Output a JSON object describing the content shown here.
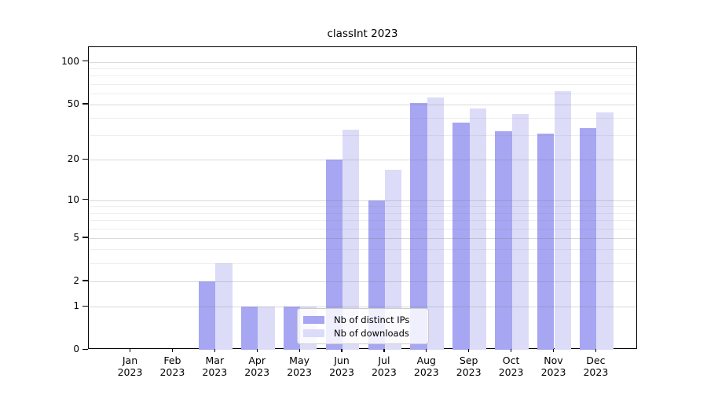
{
  "title": "classInt 2023",
  "chart_data": {
    "type": "bar",
    "yscale": "log10(1+x)",
    "grid": true,
    "legend_position": "lower center",
    "ylim": [
      0,
      126
    ],
    "categories": [
      {
        "month": "Jan",
        "year": "2023"
      },
      {
        "month": "Feb",
        "year": "2023"
      },
      {
        "month": "Mar",
        "year": "2023"
      },
      {
        "month": "Apr",
        "year": "2023"
      },
      {
        "month": "May",
        "year": "2023"
      },
      {
        "month": "Jun",
        "year": "2023"
      },
      {
        "month": "Jul",
        "year": "2023"
      },
      {
        "month": "Aug",
        "year": "2023"
      },
      {
        "month": "Sep",
        "year": "2023"
      },
      {
        "month": "Oct",
        "year": "2023"
      },
      {
        "month": "Nov",
        "year": "2023"
      },
      {
        "month": "Dec",
        "year": "2023"
      }
    ],
    "series": [
      {
        "name": "Nb of distinct IPs",
        "color": "#a6a6f2",
        "values": [
          0,
          0,
          2,
          1,
          1,
          20,
          10,
          51,
          37,
          32,
          31,
          34
        ]
      },
      {
        "name": "Nb of downloads",
        "color": "#dcdcf8",
        "values": [
          0,
          0,
          3,
          1,
          1,
          33,
          17,
          56,
          47,
          43,
          62,
          44
        ]
      }
    ],
    "ytick_values": [
      0,
      1,
      2,
      5,
      10,
      20,
      50,
      100
    ],
    "ytick_labels": [
      "0",
      "1",
      "2",
      "5",
      "10",
      "20",
      "50",
      "100"
    ],
    "minor_grid_values": [
      3,
      4,
      6,
      7,
      8,
      9,
      30,
      40,
      60,
      70,
      80,
      90
    ]
  },
  "colors": {
    "series1": "#a6a6f2",
    "series2": "#dcdcf8",
    "axis": "#000000",
    "legend_border": "#cccccc"
  }
}
